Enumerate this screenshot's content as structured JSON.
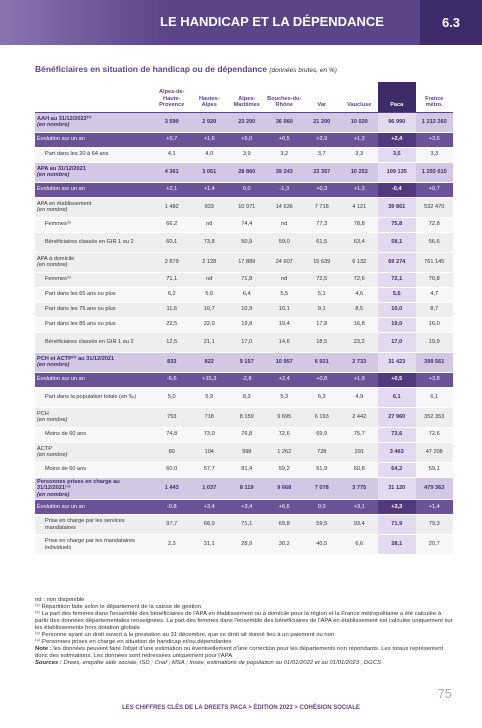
{
  "header": {
    "title": "LE HANDICAP ET LA DÉPENDANCE",
    "section": "6.3"
  },
  "subtitle": {
    "text": "Bénéficiaires en situation de handicap ou de dépendance",
    "unit": "(données brutes, en %)"
  },
  "table": {
    "columns": [
      "Alpes-de-Haute-Provence",
      "Hautes-Alpes",
      "Alpes-Maritimes",
      "Bouches-du-Rhône",
      "Var",
      "Vaucluse",
      "Paca",
      "France métro."
    ],
    "rows": [
      {
        "kind": "group",
        "label": "AAH au 31/12/2022⁽¹⁾",
        "note": "(en nombre)",
        "values": [
          "3 590",
          "2 920",
          "23 200",
          "36 060",
          "21 200",
          "10 020",
          "96 990",
          "1 213 260"
        ]
      },
      {
        "kind": "evolution",
        "label": "Évolution sur un an",
        "values": [
          "+5,7",
          "+1,6",
          "+5,0",
          "+0,5",
          "+2,9",
          "+1,3",
          "+2,4",
          "+3,6"
        ]
      },
      {
        "kind": "item",
        "label": "Part dans les 20 à 64 ans",
        "values": [
          "4,1",
          "4,0",
          "3,9",
          "3,2",
          "3,7",
          "3,3",
          "3,5",
          "3,3"
        ]
      },
      {
        "kind": "group",
        "label": "APA au 31/12/2021",
        "note": "(en nombre)",
        "values": [
          "4 361",
          "3 061",
          "28 860",
          "39 243",
          "23 357",
          "10 253",
          "109 135",
          "1 293 615"
        ]
      },
      {
        "kind": "evolution",
        "label": "Évolution sur un an",
        "values": [
          "+2,1",
          "+1,4",
          "0,0",
          "-1,3",
          "+0,3",
          "+1,3",
          "-0,4",
          "+0,7"
        ]
      },
      {
        "kind": "total",
        "label": "APA en établissement",
        "note": "(en nombre)",
        "values": [
          "1 482",
          "933",
          "10 971",
          "14 636",
          "7 718",
          "4 121",
          "39 861",
          "532 470"
        ]
      },
      {
        "kind": "item",
        "label": "Femmes⁽²⁾",
        "values": [
          "66,2",
          "nd",
          "74,4",
          "nd",
          "77,3",
          "78,8",
          "75,8",
          "72,8"
        ]
      },
      {
        "kind": "item",
        "label": "Bénéficiaires classés en GIR 1 ou 2",
        "values": [
          "60,1",
          "73,8",
          "50,9",
          "59,0",
          "61,5",
          "63,4",
          "58,1",
          "56,6"
        ]
      },
      {
        "kind": "total",
        "label": "APA à domicile",
        "note": "(en nombre)",
        "values": [
          "2 879",
          "2 128",
          "17 889",
          "24 607",
          "15 639",
          "6 132",
          "69 274",
          "761 145"
        ]
      },
      {
        "kind": "item",
        "label": "Femmes⁽²⁾",
        "values": [
          "71,1",
          "nd",
          "71,8",
          "nd",
          "72,5",
          "72,6",
          "72,1",
          "70,8"
        ]
      },
      {
        "kind": "item",
        "label": "Part dans les 65 ans ou plus",
        "values": [
          "6,2",
          "5,6",
          "6,4",
          "5,5",
          "5,1",
          "4,6",
          "5,6",
          "4,7"
        ]
      },
      {
        "kind": "item",
        "label": "Part dans les 75 ans ou plus",
        "values": [
          "11,6",
          "10,7",
          "10,9",
          "10,1",
          "9,1",
          "8,5",
          "10,0",
          "8,7"
        ]
      },
      {
        "kind": "item",
        "label": "Part dans les 85 ans ou plus",
        "values": [
          "22,5",
          "22,0",
          "19,8",
          "19,4",
          "17,8",
          "16,8",
          "19,0",
          "16,0"
        ]
      },
      {
        "kind": "item",
        "label": "Bénéficiaires classés en GIR 1 ou 2",
        "values": [
          "12,5",
          "21,1",
          "17,0",
          "14,6",
          "18,5",
          "23,2",
          "17,0",
          "19,9"
        ]
      },
      {
        "kind": "group",
        "label": "PCH et ACTP⁽³⁾ au 31/12/2021",
        "note": "(en nombre)",
        "values": [
          "833",
          "822",
          "9 157",
          "10 957",
          "6 921",
          "2 733",
          "31 423",
          "399 561"
        ]
      },
      {
        "kind": "evolution",
        "label": "Évolution sur un an",
        "values": [
          "-6,6",
          "+15,3",
          "-2,8",
          "+2,4",
          "+0,8",
          "+1,9",
          "+0,5",
          "+3,8"
        ]
      },
      {
        "kind": "item",
        "label": "Part dans la population totale (en ‰)",
        "values": [
          "5,0",
          "5,9",
          "8,3",
          "5,3",
          "6,3",
          "4,9",
          "6,1",
          "6,1"
        ]
      },
      {
        "kind": "total",
        "label": "PCH",
        "note": "(en nombre)",
        "values": [
          "753",
          "718",
          "8 159",
          "9 695",
          "6 193",
          "2 442",
          "27 960",
          "352 353"
        ]
      },
      {
        "kind": "item",
        "label": "Moins de 60 ans",
        "values": [
          "74,8",
          "73,0",
          "76,8",
          "72,6",
          "69,9",
          "75,7",
          "73,6",
          "72,6"
        ]
      },
      {
        "kind": "total",
        "label": "ACTP",
        "note": "(en nombre)",
        "values": [
          "80",
          "104",
          "998",
          "1 262",
          "728",
          "291",
          "3 463",
          "47 208"
        ]
      },
      {
        "kind": "item",
        "label": "Moins de 60 ans",
        "values": [
          "60,0",
          "57,7",
          "81,4",
          "59,2",
          "51,9",
          "60,8",
          "64,2",
          "59,1"
        ]
      },
      {
        "kind": "group",
        "label": "Personnes prises en charge au 31/12/2021⁽⁴⁾",
        "note": "(en nombre)",
        "values": [
          "1 443",
          "1 037",
          "8 119",
          "9 668",
          "7 078",
          "3 775",
          "31 120",
          "479 363"
        ]
      },
      {
        "kind": "evolution",
        "label": "Évolution sur un an",
        "values": [
          "-0,8",
          "+3,4",
          "+3,4",
          "+6,6",
          "0,0",
          "+3,1",
          "+3,3",
          "+1,4"
        ]
      },
      {
        "kind": "item",
        "label": "Prise en charge par les services mandataires",
        "values": [
          "97,7",
          "68,9",
          "71,1",
          "69,8",
          "59,5",
          "93,4",
          "71,9",
          "79,3"
        ]
      },
      {
        "kind": "item",
        "label": "Prise en charge par les mandataires individuels",
        "values": [
          "2,3",
          "31,1",
          "28,9",
          "30,2",
          "40,5",
          "6,6",
          "28,1",
          "20,7"
        ]
      }
    ]
  },
  "footnotes": [
    "nd : non disponible",
    "⁽¹⁾ Répartition faite selon le département de la caisse de gestion",
    "⁽²⁾ La part des femmes dans l'ensemble des bénéficiaires de l'APA en établissement ou à domicile pour la région et la France métropolitaine a été calculée à partir des données départementales renseignées. La part des femmes dans l'ensemble des bénéficiaires de l'APA en établissement est calculée uniquement sur les établissements hors dotation globale",
    "⁽³⁾ Personne ayant un droit ouvert à la prestation au 31 décembre, que ce droit ait donné lieu à un paiement ou non",
    "⁽⁴⁾ Personnes prises en charge en situation de handicap et/ou dépendantes"
  ],
  "note": {
    "label": "Note :",
    "text": "les données peuvent faire l'objet d'une estimation ou éventuellement d'une correction pour les départements non répondants. Les totaux représentent donc des estimations. Les données sont redressées uniquement pour l'APA"
  },
  "sources": {
    "label": "Sources :",
    "text": "Drees, enquête aide sociale, ISD ; Cnaf ; MSA ; Insee, estimations de population au 01/01/2022 et au 01/01/2023 ; DGCS"
  },
  "footer": {
    "text": "LES CHIFFRES CLÉS DE LA DREETS PACA > ÉDITION 2023 > COHÉSION SOCIALE",
    "page": "75"
  }
}
